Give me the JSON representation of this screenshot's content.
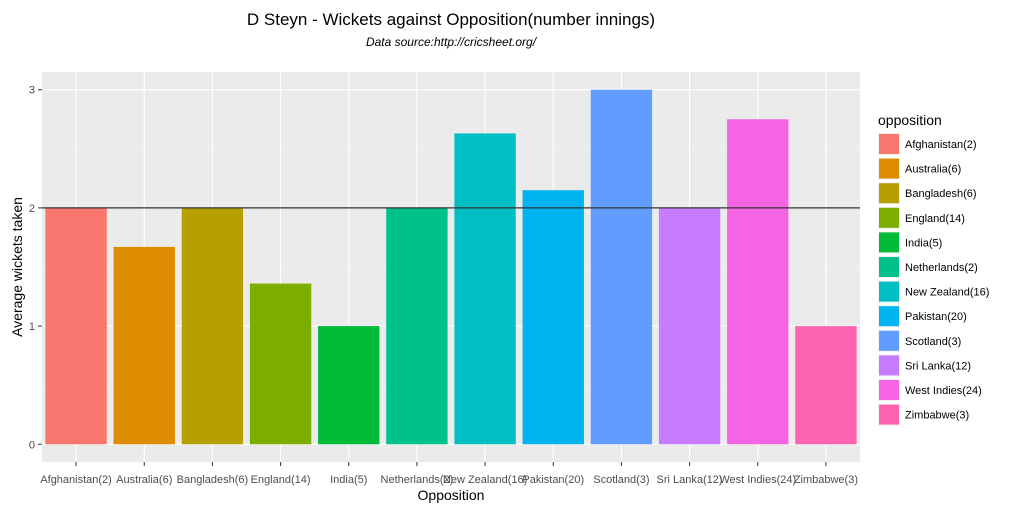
{
  "chart_data": {
    "type": "bar",
    "title": "D Steyn - Wickets against Opposition(number innings)",
    "subtitle": "Data source:http://cricsheet.org/",
    "xlabel": "Opposition",
    "ylabel": "Average wickets taken",
    "categories": [
      "Afghanistan(2)",
      "Australia(6)",
      "Bangladesh(6)",
      "England(14)",
      "India(5)",
      "Netherlands(2)",
      "New Zealand(16)",
      "Pakistan(20)",
      "Scotland(3)",
      "Sri Lanka(12)",
      "West Indies(24)",
      "Zimbabwe(3)"
    ],
    "values": [
      2.0,
      1.67,
      2.0,
      1.36,
      1.0,
      2.0,
      2.63,
      2.15,
      3.0,
      2.0,
      2.75,
      1.0
    ],
    "colors": [
      "#F8766D",
      "#DE8C00",
      "#B79F00",
      "#7CAE00",
      "#00BA38",
      "#00C08B",
      "#00BFC4",
      "#00B4F0",
      "#619CFF",
      "#C77CFF",
      "#F564E3",
      "#FF64B0"
    ],
    "ylim": [
      -0.15,
      3.15
    ],
    "yticks": [
      "0",
      "1",
      "2",
      "3"
    ],
    "hline": 2,
    "grid": true,
    "panel_background": "#EBEBEB",
    "legend": {
      "title": "opposition",
      "placement": "right"
    }
  }
}
